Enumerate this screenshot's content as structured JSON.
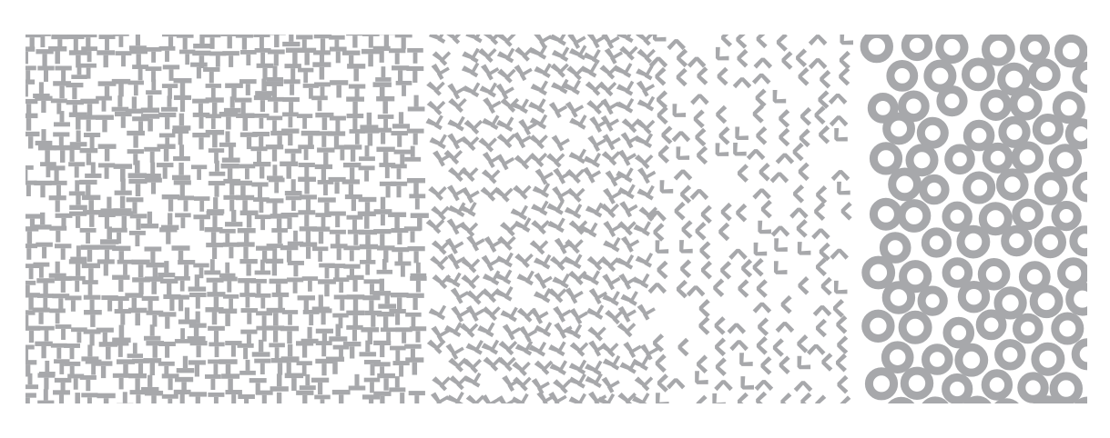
{
  "figure": {
    "description_free": true,
    "fill_color": "#a7a8ab",
    "background_color": "#ffffff",
    "regions": [
      {
        "id": "t-shapes",
        "glyph": "T-shape",
        "icon": "t-shape-icon"
      },
      {
        "id": "t-to-v-transition",
        "glyph": "rotated T / V-shape",
        "icon": "v-shape-icon"
      },
      {
        "id": "l-angles",
        "glyph": "angle bracket",
        "icon": "angle-icon"
      },
      {
        "id": "rings",
        "glyph": "ring",
        "icon": "ring-icon"
      }
    ]
  }
}
